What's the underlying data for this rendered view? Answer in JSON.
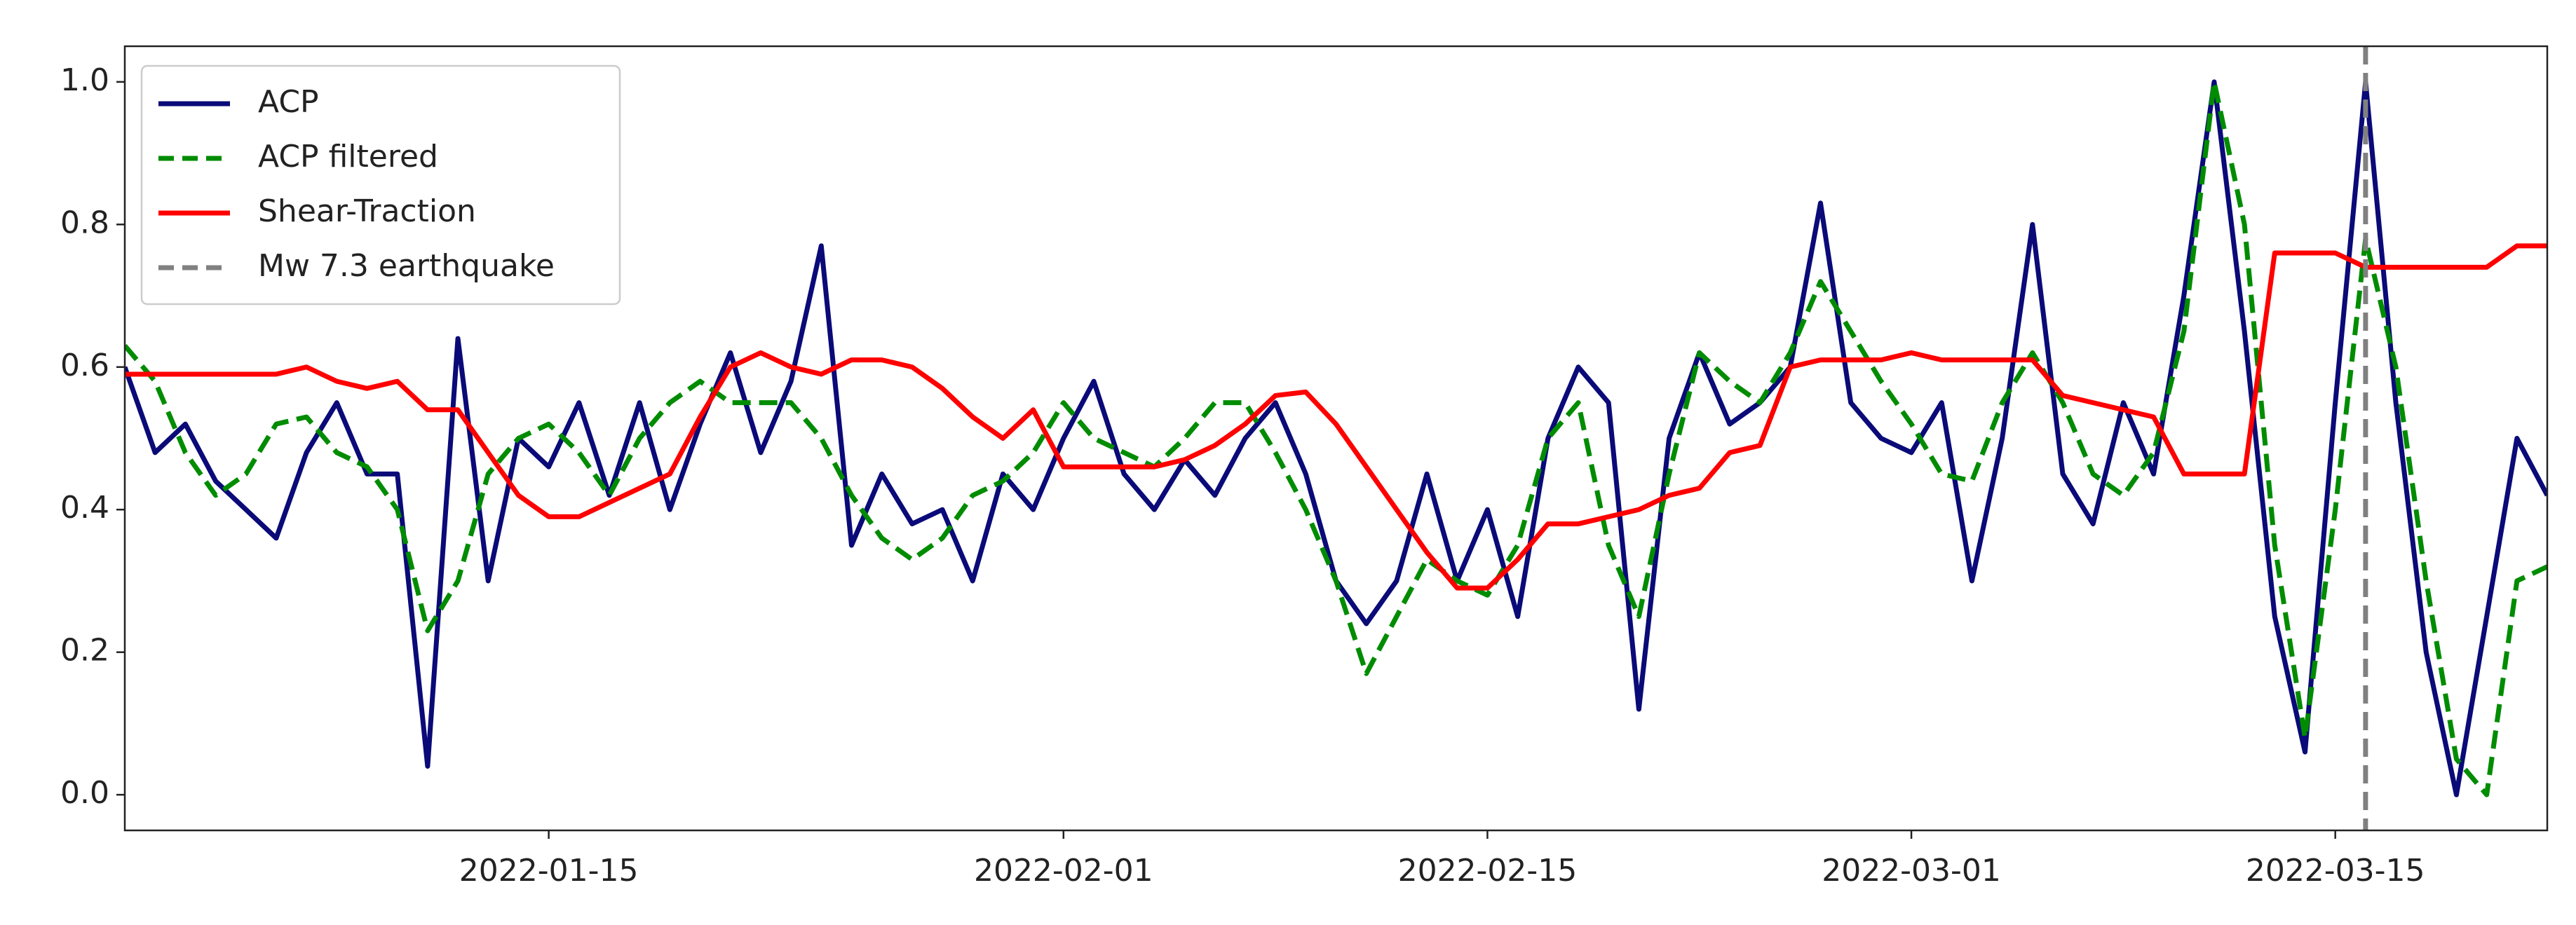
{
  "chart_data": {
    "type": "line",
    "x": [
      "2022-01-01",
      "2022-01-02",
      "2022-01-03",
      "2022-01-04",
      "2022-01-05",
      "2022-01-06",
      "2022-01-07",
      "2022-01-08",
      "2022-01-09",
      "2022-01-10",
      "2022-01-11",
      "2022-01-12",
      "2022-01-13",
      "2022-01-14",
      "2022-01-15",
      "2022-01-16",
      "2022-01-17",
      "2022-01-18",
      "2022-01-19",
      "2022-01-20",
      "2022-01-21",
      "2022-01-22",
      "2022-01-23",
      "2022-01-24",
      "2022-01-25",
      "2022-01-26",
      "2022-01-27",
      "2022-01-28",
      "2022-01-29",
      "2022-01-30",
      "2022-01-31",
      "2022-02-01",
      "2022-02-02",
      "2022-02-03",
      "2022-02-04",
      "2022-02-05",
      "2022-02-06",
      "2022-02-07",
      "2022-02-08",
      "2022-02-09",
      "2022-02-10",
      "2022-02-11",
      "2022-02-12",
      "2022-02-13",
      "2022-02-14",
      "2022-02-15",
      "2022-02-16",
      "2022-02-17",
      "2022-02-18",
      "2022-02-19",
      "2022-02-20",
      "2022-02-21",
      "2022-02-22",
      "2022-02-23",
      "2022-02-24",
      "2022-02-25",
      "2022-02-26",
      "2022-02-27",
      "2022-02-28",
      "2022-03-01",
      "2022-03-02",
      "2022-03-03",
      "2022-03-04",
      "2022-03-05",
      "2022-03-06",
      "2022-03-07",
      "2022-03-08",
      "2022-03-09",
      "2022-03-10",
      "2022-03-11",
      "2022-03-12",
      "2022-03-13",
      "2022-03-14",
      "2022-03-15",
      "2022-03-16",
      "2022-03-17",
      "2022-03-18",
      "2022-03-19",
      "2022-03-20",
      "2022-03-21",
      "2022-03-22"
    ],
    "series": [
      {
        "name": "ACP",
        "color": "#0a0a78",
        "linestyle": "solid",
        "values": [
          0.6,
          0.48,
          0.52,
          0.44,
          0.4,
          0.36,
          0.48,
          0.55,
          0.45,
          0.45,
          0.04,
          0.64,
          0.3,
          0.5,
          0.46,
          0.55,
          0.42,
          0.55,
          0.4,
          0.52,
          0.62,
          0.48,
          0.58,
          0.77,
          0.35,
          0.45,
          0.38,
          0.4,
          0.3,
          0.45,
          0.4,
          0.5,
          0.58,
          0.45,
          0.4,
          0.47,
          0.42,
          0.5,
          0.55,
          0.45,
          0.3,
          0.24,
          0.3,
          0.45,
          0.3,
          0.4,
          0.25,
          0.5,
          0.6,
          0.55,
          0.12,
          0.5,
          0.62,
          0.52,
          0.55,
          0.6,
          0.83,
          0.55,
          0.5,
          0.48,
          0.55,
          0.3,
          0.5,
          0.8,
          0.45,
          0.38,
          0.55,
          0.45,
          0.7,
          1.0,
          0.65,
          0.25,
          0.06,
          0.55,
          1.0,
          0.55,
          0.2,
          0.0,
          0.25,
          0.5,
          0.42
        ]
      },
      {
        "name": "ACP filtered",
        "color": "#008c00",
        "linestyle": "dashed",
        "values": [
          0.63,
          0.58,
          0.48,
          0.42,
          0.45,
          0.52,
          0.53,
          0.48,
          0.46,
          0.4,
          0.23,
          0.3,
          0.45,
          0.5,
          0.52,
          0.48,
          0.42,
          0.5,
          0.55,
          0.58,
          0.55,
          0.55,
          0.55,
          0.5,
          0.42,
          0.36,
          0.33,
          0.36,
          0.42,
          0.44,
          0.48,
          0.55,
          0.5,
          0.48,
          0.46,
          0.5,
          0.55,
          0.55,
          0.48,
          0.4,
          0.3,
          0.17,
          0.25,
          0.33,
          0.3,
          0.28,
          0.35,
          0.5,
          0.55,
          0.35,
          0.25,
          0.45,
          0.62,
          0.58,
          0.55,
          0.62,
          0.72,
          0.65,
          0.58,
          0.52,
          0.45,
          0.44,
          0.55,
          0.62,
          0.55,
          0.45,
          0.42,
          0.48,
          0.65,
          1.0,
          0.8,
          0.35,
          0.08,
          0.4,
          0.78,
          0.6,
          0.3,
          0.05,
          0.0,
          0.3,
          0.32
        ]
      },
      {
        "name": "Shear-Traction",
        "color": "#ff0000",
        "linestyle": "solid",
        "values": [
          0.59,
          0.59,
          0.59,
          0.59,
          0.59,
          0.59,
          0.6,
          0.58,
          0.57,
          0.58,
          0.54,
          0.54,
          0.48,
          0.42,
          0.39,
          0.39,
          0.41,
          0.43,
          0.45,
          0.53,
          0.6,
          0.62,
          0.6,
          0.59,
          0.61,
          0.61,
          0.6,
          0.57,
          0.53,
          0.5,
          0.54,
          0.46,
          0.46,
          0.46,
          0.46,
          0.47,
          0.49,
          0.52,
          0.56,
          0.565,
          0.52,
          0.46,
          0.4,
          0.34,
          0.29,
          0.29,
          0.33,
          0.38,
          0.38,
          0.39,
          0.4,
          0.42,
          0.43,
          0.48,
          0.49,
          0.6,
          0.61,
          0.61,
          0.61,
          0.62,
          0.61,
          0.61,
          0.61,
          0.61,
          0.56,
          0.55,
          0.54,
          0.53,
          0.45,
          0.45,
          0.45,
          0.76,
          0.76,
          0.76,
          0.74,
          0.74,
          0.74,
          0.74,
          0.74,
          0.77,
          0.77
        ]
      }
    ],
    "vlines": [
      {
        "name": "Mw 7.3 earthquake",
        "color": "#808080",
        "linestyle": "dashed",
        "x": "2022-03-16"
      }
    ],
    "xlim": [
      "2022-01-01",
      "2022-03-22"
    ],
    "xticks": [
      "2022-01-15",
      "2022-02-01",
      "2022-02-15",
      "2022-03-01",
      "2022-03-15"
    ],
    "ylim": [
      -0.05,
      1.05
    ],
    "yticks": [
      {
        "value": 0,
        "label": "0.0"
      },
      0.2,
      0.4,
      0.6,
      0.8,
      {
        "value": 1,
        "label": "1.0"
      }
    ],
    "legend": "upper left",
    "grid": false
  }
}
